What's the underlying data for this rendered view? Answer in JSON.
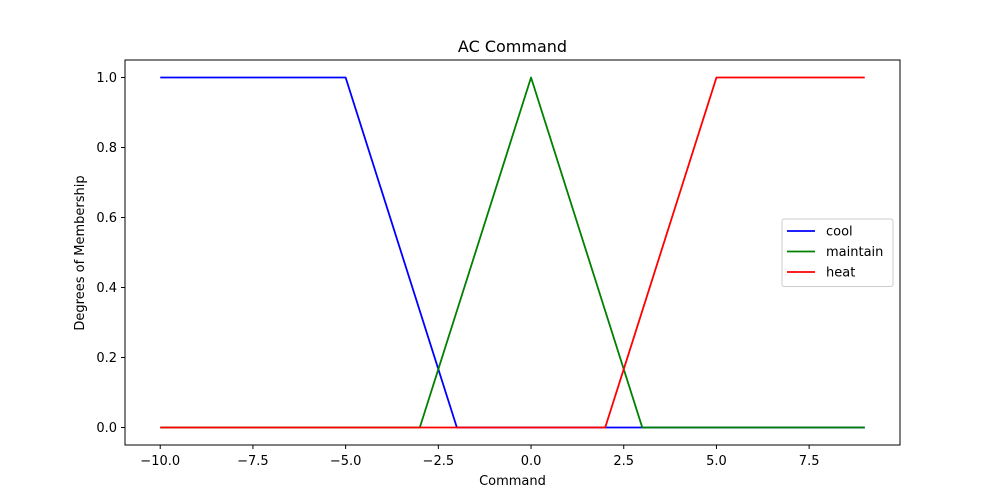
{
  "chart_data": {
    "type": "line",
    "title": "AC Command",
    "xlabel": "Command",
    "ylabel": "Degrees of Membership",
    "xlim": [
      -10.95,
      9.95
    ],
    "ylim": [
      -0.05,
      1.05
    ],
    "xticks": [
      -10.0,
      -7.5,
      -5.0,
      -2.5,
      0.0,
      2.5,
      5.0,
      7.5
    ],
    "xtick_labels": [
      "−10.0",
      "−7.5",
      "−5.0",
      "−2.5",
      "0.0",
      "2.5",
      "5.0",
      "7.5"
    ],
    "yticks": [
      0.0,
      0.2,
      0.4,
      0.6,
      0.8,
      1.0
    ],
    "ytick_labels": [
      "0.0",
      "0.2",
      "0.4",
      "0.6",
      "0.8",
      "1.0"
    ],
    "grid": false,
    "legend_position": "center-right",
    "series": [
      {
        "name": "cool",
        "color": "#0000ff",
        "x": [
          -10,
          -5,
          -2,
          9
        ],
        "y": [
          1,
          1,
          0,
          0
        ]
      },
      {
        "name": "maintain",
        "color": "#008000",
        "x": [
          -10,
          -3,
          0,
          3,
          9
        ],
        "y": [
          0,
          0,
          1,
          0,
          0
        ]
      },
      {
        "name": "heat",
        "color": "#ff0000",
        "x": [
          -10,
          2,
          5,
          9
        ],
        "y": [
          0,
          0,
          1,
          1
        ]
      }
    ]
  }
}
